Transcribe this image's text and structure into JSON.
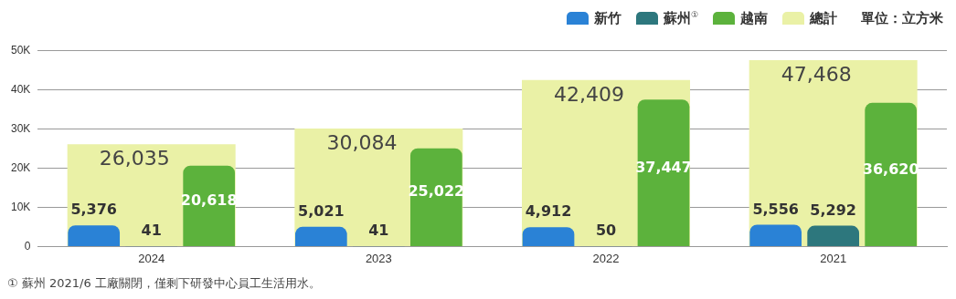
{
  "chart_data": {
    "type": "bar",
    "categories": [
      "2024",
      "2023",
      "2022",
      "2021"
    ],
    "series": [
      {
        "name": "新竹",
        "color": "#2a82d6",
        "values": [
          5376,
          5021,
          4912,
          5556
        ],
        "value_labels": [
          "5,376",
          "5,021",
          "4,912",
          "5,556"
        ]
      },
      {
        "name": "蘇州$^{①}$",
        "color": "#2d777d",
        "values": [
          41,
          41,
          50,
          5292
        ],
        "value_labels": [
          "41",
          "41",
          "50",
          "5,292"
        ]
      },
      {
        "name": "越南",
        "color": "#5cb23c",
        "values": [
          20618,
          25022,
          37447,
          36620
        ],
        "value_labels": [
          "20,618",
          "25,022",
          "37,447",
          "36,620"
        ]
      },
      {
        "name": "總計",
        "color": "#eaf1a6",
        "values": [
          26035,
          30084,
          42409,
          47468
        ],
        "value_labels": [
          "26,035",
          "30,084",
          "42,409",
          "47,468"
        ]
      }
    ],
    "ylim": [
      0,
      50000
    ],
    "yticks": [
      0,
      {
        "value": 10000,
        "label": "10K"
      },
      {
        "value": 20000,
        "label": "20K"
      },
      {
        "value": 30000,
        "label": "30K"
      },
      {
        "value": 40000,
        "label": "40K"
      },
      {
        "value": 50000,
        "label": "50K"
      }
    ],
    "grid": "y",
    "legend": "top right",
    "annotations": [
      "單位：立方米",
      "① 蘇州 2021/6 工廠關閉，僅剩下研發中心員工生活用水。"
    ]
  }
}
